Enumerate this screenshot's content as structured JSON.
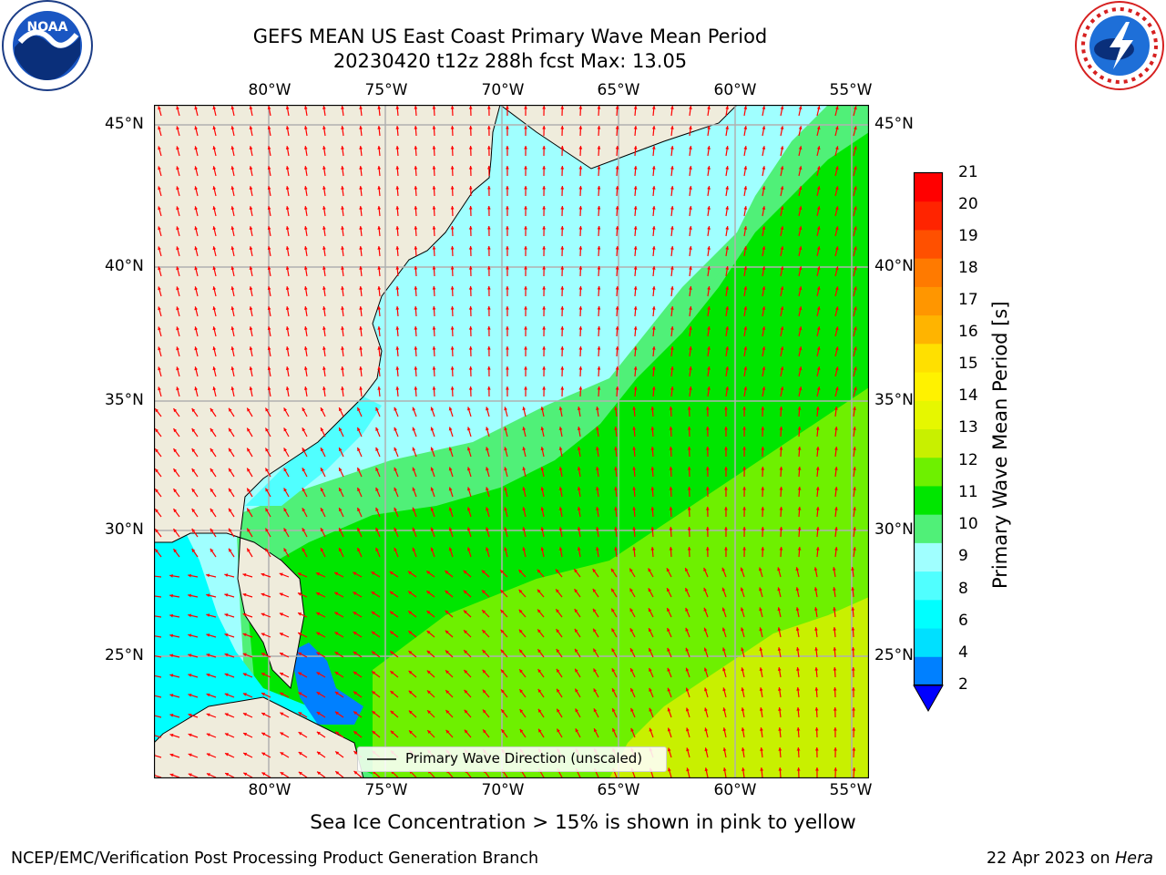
{
  "header": {
    "title_line1": "GEFS MEAN US East Coast Primary Wave Mean Period",
    "title_line2": "20230420 t12z 288h fcst   Max: 13.05"
  },
  "logos": {
    "noaa_text": "NOAA",
    "noaa_ring": "NATIONAL OCEANIC AND ATMOSPHERIC ADMINISTRATION · U.S. DEPARTMENT OF COMMERCE",
    "nws_ring": "NATIONAL WEATHER SERVICE"
  },
  "map": {
    "lon_labels": [
      "80°W",
      "75°W",
      "70°W",
      "65°W",
      "60°W",
      "55°W"
    ],
    "lat_labels": [
      "45°N",
      "40°N",
      "35°N",
      "30°N",
      "25°N"
    ],
    "legend_label": "Primary Wave Direction (unscaled)",
    "land_color": "#efecdc",
    "arrow_color": "#ff0000",
    "grid_color": "#b0b0b0"
  },
  "colorbar": {
    "label": "Primary Wave Mean Period [s]",
    "ticks": [
      "21",
      "20",
      "19",
      "18",
      "17",
      "16",
      "15",
      "14",
      "13",
      "12",
      "11",
      "10",
      "9",
      "8",
      "6",
      "4",
      "2"
    ],
    "colors": [
      "#ff0000",
      "#ff2400",
      "#ff5000",
      "#ff7a00",
      "#ff9600",
      "#ffb400",
      "#ffe000",
      "#fff200",
      "#e6f700",
      "#c8f000",
      "#6ef000",
      "#00e600",
      "#50f078",
      "#a0ffff",
      "#50ffff",
      "#00ffff",
      "#00e0ff",
      "#0080ff"
    ],
    "extend_color": "#0000ff"
  },
  "notes": {
    "sea_ice": "Sea Ice Concentration > 15% is shown in pink to yellow"
  },
  "footer": {
    "left": "NCEP/EMC/Verification Post Processing Product Generation Branch",
    "date": "22 Apr 2023 on ",
    "machine": "Hera"
  }
}
